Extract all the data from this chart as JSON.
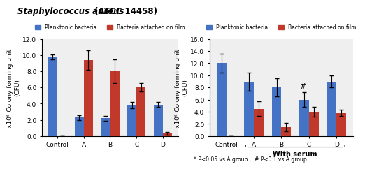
{
  "title_italic": "Staphylococcus aureus",
  "title_normal": " (ATCC 14458)",
  "left_chart": {
    "categories": [
      "Control",
      "A",
      "B",
      "C",
      "D"
    ],
    "planktonic": [
      9.8,
      2.3,
      2.2,
      3.8,
      3.9
    ],
    "planktonic_err": [
      0.3,
      0.3,
      0.3,
      0.4,
      0.3
    ],
    "attached": [
      0,
      9.4,
      8.0,
      6.0,
      0.35
    ],
    "attached_err": [
      0,
      1.2,
      1.5,
      0.5,
      0.15
    ],
    "ylabel": "x10⁶ Colony forming unit\n(CFU)",
    "ylim": [
      0,
      12.0
    ],
    "yticks": [
      0,
      2.0,
      4.0,
      6.0,
      8.0,
      10.0,
      12.0
    ]
  },
  "right_chart": {
    "categories": [
      "Control",
      "A",
      "B",
      "C",
      "D"
    ],
    "planktonic": [
      12.0,
      9.0,
      8.0,
      6.0,
      9.0
    ],
    "planktonic_err": [
      1.5,
      1.5,
      1.5,
      1.2,
      1.0
    ],
    "attached": [
      0,
      4.5,
      1.5,
      4.0,
      3.8
    ],
    "attached_err": [
      0,
      1.2,
      0.7,
      0.8,
      0.5
    ],
    "xlabel": "With serum",
    "ylabel": "x10⁶ Colony forming unit\n(CFU)",
    "ylim": [
      0,
      16.0
    ],
    "yticks": [
      0,
      2.0,
      4.0,
      6.0,
      8.0,
      10.0,
      12.0,
      14.0,
      16.0
    ],
    "note": "* P<0.05 vs A group ,  # P<0.1 vs A group",
    "hash_annotation": "#",
    "hash_cat": "C"
  },
  "bar_width": 0.35,
  "planktonic_color": "#4472C4",
  "attached_color": "#C0392B",
  "legend_labels": [
    "Planktonic bacteria",
    "Bacteria attached on film"
  ],
  "bg_color": "#EFEFEF"
}
